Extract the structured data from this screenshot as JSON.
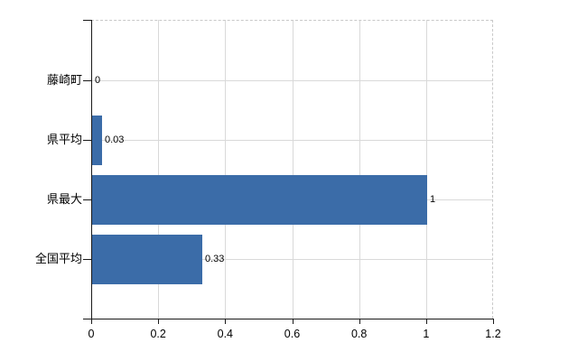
{
  "chart_data": {
    "type": "bar",
    "orientation": "horizontal",
    "title": "",
    "categories": [
      "藤崎町",
      "県平均",
      "県最大",
      "全国平均"
    ],
    "values": [
      0,
      0.03,
      1,
      0.33
    ],
    "value_labels": [
      "0",
      "0.03",
      "1",
      "0.33"
    ],
    "x_ticks": [
      0,
      0.2,
      0.4,
      0.6,
      0.8,
      1,
      1.2
    ],
    "x_tick_labels": [
      "0",
      "0.2",
      "0.4",
      "0.6",
      "0.8",
      "1",
      "1.2"
    ],
    "xlim": [
      0,
      1.2
    ],
    "xlabel": "",
    "ylabel": "",
    "grid": true,
    "legend": null,
    "colors": {
      "bar": "#3b6ca8",
      "gridline": "#d9d9d9",
      "dashed_border": "#c9c9c9",
      "axis": "#1a1a1a",
      "text": "#000000",
      "background": "#ffffff"
    }
  }
}
